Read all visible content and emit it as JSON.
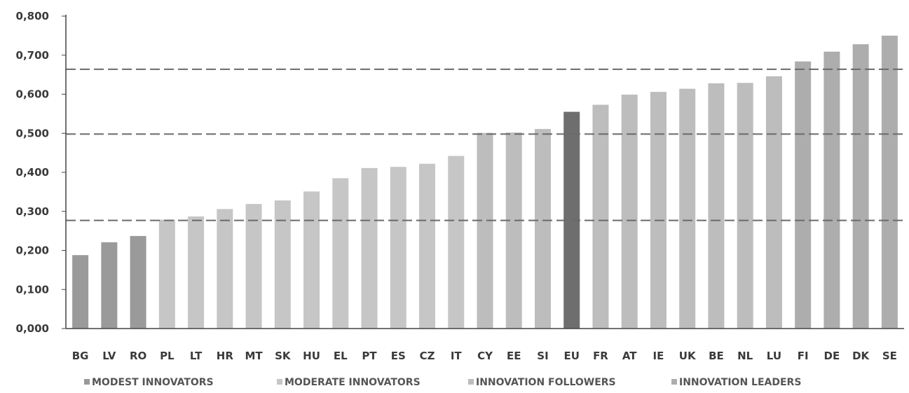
{
  "chart_data": {
    "type": "bar",
    "categories": [
      "BG",
      "LV",
      "RO",
      "PL",
      "LT",
      "HR",
      "MT",
      "SK",
      "HU",
      "EL",
      "PT",
      "ES",
      "CZ",
      "IT",
      "CY",
      "EE",
      "SI",
      "EU",
      "FR",
      "AT",
      "IE",
      "UK",
      "BE",
      "NL",
      "LU",
      "FI",
      "DE",
      "DK",
      "SE"
    ],
    "values": [
      0.188,
      0.221,
      0.237,
      0.279,
      0.287,
      0.306,
      0.319,
      0.328,
      0.351,
      0.385,
      0.411,
      0.414,
      0.422,
      0.442,
      0.501,
      0.502,
      0.511,
      0.555,
      0.573,
      0.599,
      0.606,
      0.614,
      0.628,
      0.629,
      0.646,
      0.684,
      0.709,
      0.728,
      0.75
    ],
    "groups": [
      "modest",
      "modest",
      "modest",
      "moderate",
      "moderate",
      "moderate",
      "moderate",
      "moderate",
      "moderate",
      "moderate",
      "moderate",
      "moderate",
      "moderate",
      "moderate",
      "followers",
      "followers",
      "followers",
      "eu",
      "followers",
      "followers",
      "followers",
      "followers",
      "followers",
      "followers",
      "followers",
      "leaders",
      "leaders",
      "leaders",
      "leaders"
    ],
    "ylim": [
      0,
      0.8
    ],
    "yticks": [
      "0,000",
      "0,100",
      "0,200",
      "0,300",
      "0,400",
      "0,500",
      "0,600",
      "0,700",
      "0,800"
    ],
    "reference_lines": [
      0.277,
      0.498,
      0.664
    ],
    "grid": false,
    "legend_position": "bottom",
    "legend": [
      {
        "key": "modest",
        "label": "MODEST INNOVATORS"
      },
      {
        "key": "moderate",
        "label": "MODERATE INNOVATORS"
      },
      {
        "key": "followers",
        "label": "INNOVATION FOLLOWERS"
      },
      {
        "key": "leaders",
        "label": "INNOVATION LEADERS"
      }
    ],
    "colors": {
      "modest": "#9a9a9a",
      "moderate": "#c6c6c6",
      "followers": "#bdbdbd",
      "leaders": "#adadad",
      "eu": "#6e6e6e",
      "reference_line": "#6a6a6a",
      "axis": "#444444"
    }
  }
}
